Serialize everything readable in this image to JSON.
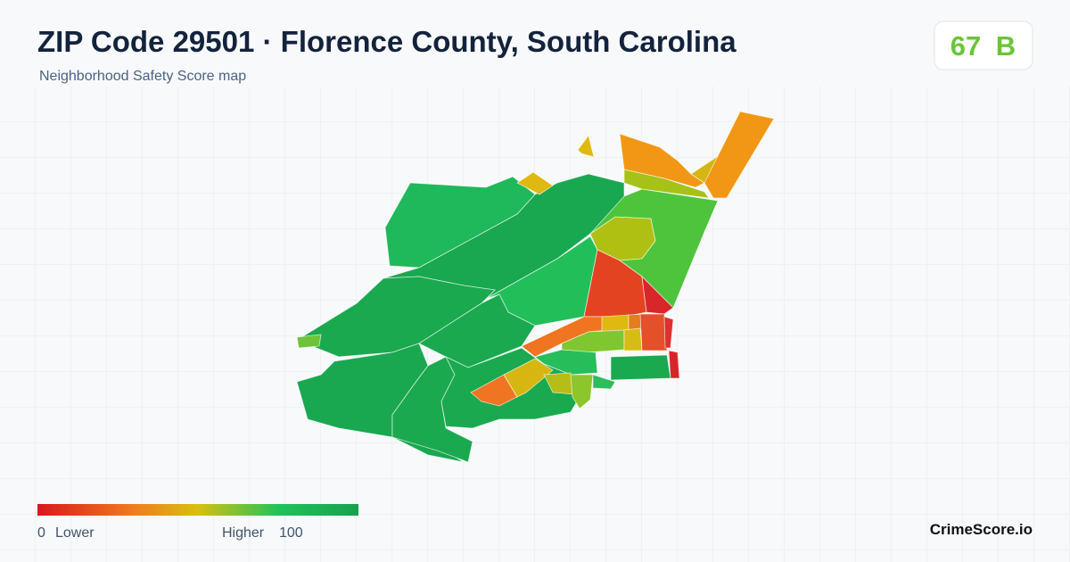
{
  "header": {
    "title": "ZIP Code 29501 · Florence County, South Carolina",
    "subtitle": "Neighborhood Safety Score map"
  },
  "score": {
    "value": 67,
    "grade": "B"
  },
  "legend": {
    "min": 0,
    "min_label": "Lower",
    "max_label": "Higher",
    "max": 100
  },
  "brand": "CrimeScore.io"
}
